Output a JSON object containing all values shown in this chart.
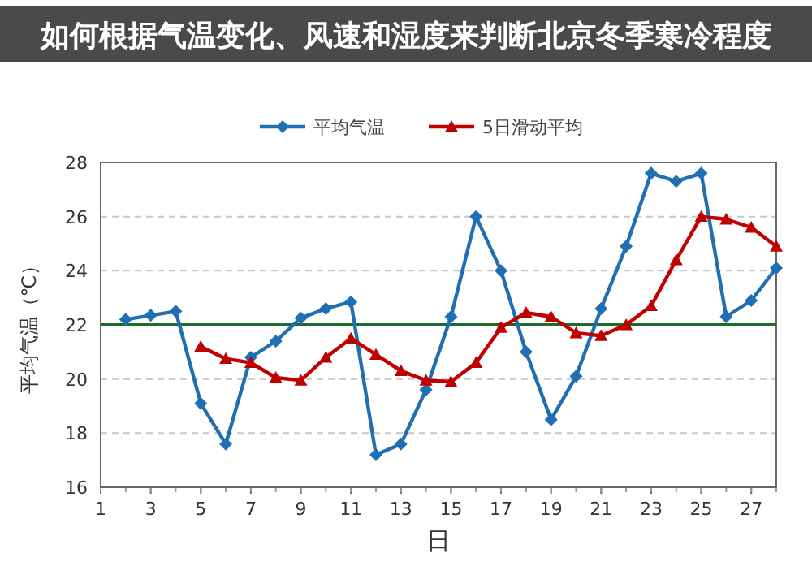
{
  "chart_data": {
    "type": "line",
    "title": "如何根据气温变化、风速和湿度来判断北京冬季寒冷程度",
    "xlabel": "日",
    "ylabel": "平均气温（℃）",
    "x": [
      2,
      3,
      4,
      5,
      6,
      7,
      8,
      9,
      10,
      11,
      12,
      13,
      14,
      15,
      16,
      17,
      18,
      19,
      20,
      21,
      22,
      23,
      24,
      25,
      26,
      27,
      28
    ],
    "series": [
      {
        "name": "平均气温",
        "color": "#1f6fb2",
        "marker": "diamond",
        "values": [
          22.2,
          22.35,
          22.5,
          19.1,
          17.6,
          20.8,
          21.4,
          22.25,
          22.6,
          22.85,
          17.2,
          17.6,
          19.6,
          22.3,
          26.0,
          24.0,
          21.0,
          18.5,
          20.1,
          22.6,
          24.9,
          27.6,
          27.3,
          27.6,
          22.3,
          22.9,
          24.1
        ]
      },
      {
        "name": "5日滑动平均",
        "color": "#c00000",
        "marker": "triangle",
        "values": [
          null,
          null,
          null,
          21.2,
          20.75,
          20.6,
          20.05,
          19.95,
          20.8,
          21.5,
          20.9,
          20.3,
          19.95,
          19.9,
          20.6,
          21.9,
          22.45,
          22.3,
          21.7,
          21.6,
          22.0,
          22.7,
          24.4,
          26.0,
          25.9,
          25.6,
          24.9
        ]
      }
    ],
    "xlim": [
      1,
      28
    ],
    "xticks": [
      1,
      3,
      5,
      7,
      9,
      11,
      13,
      15,
      17,
      19,
      21,
      23,
      25,
      27
    ],
    "ylim": [
      16,
      28
    ],
    "yticks": [
      16,
      18,
      20,
      22,
      24,
      26,
      28
    ],
    "grid": "y",
    "legend": "top",
    "ref_lines": [
      {
        "axis": "y",
        "value": 22,
        "color": "#1e6b2e"
      }
    ]
  }
}
